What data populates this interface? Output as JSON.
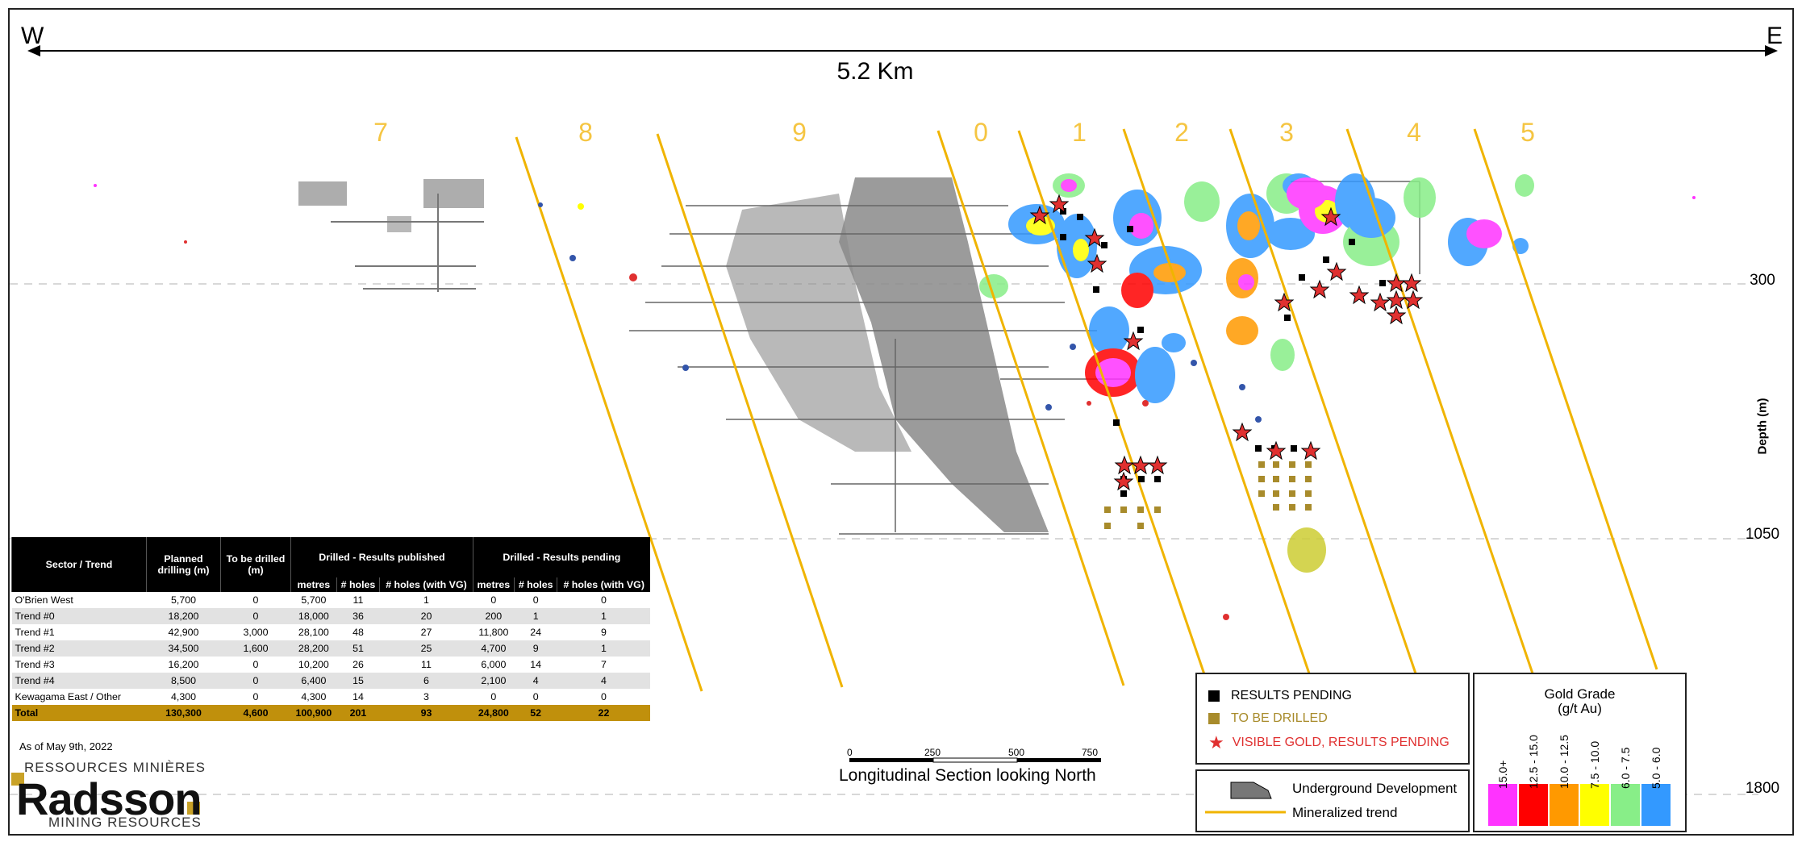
{
  "compass": {
    "west": "W",
    "east": "E"
  },
  "section_width": "5.2 Km",
  "trend_labels": [
    "7",
    "8",
    "9",
    "0",
    "1",
    "2",
    "3",
    "4",
    "5"
  ],
  "depth_labels": [
    "300",
    "1050",
    "1800"
  ],
  "depth_axis_label": "Depth (m)",
  "table": {
    "headers": {
      "sector": "Sector / Trend",
      "planned": "Planned drilling (m)",
      "to_be_drilled": "To be drilled (m)",
      "published_group": "Drilled - Results published",
      "pending_group": "Drilled - Results pending",
      "metres": "metres",
      "holes": "# holes",
      "holes_vg": "# holes (with VG)"
    },
    "rows": [
      {
        "sector": "O'Brien West",
        "planned": "5,700",
        "tbd": "0",
        "pub_m": "5,700",
        "pub_h": "11",
        "pub_vg": "1",
        "pen_m": "0",
        "pen_h": "0",
        "pen_vg": "0"
      },
      {
        "sector": "Trend #0",
        "planned": "18,200",
        "tbd": "0",
        "pub_m": "18,000",
        "pub_h": "36",
        "pub_vg": "20",
        "pen_m": "200",
        "pen_h": "1",
        "pen_vg": "1"
      },
      {
        "sector": "Trend #1",
        "planned": "42,900",
        "tbd": "3,000",
        "pub_m": "28,100",
        "pub_h": "48",
        "pub_vg": "27",
        "pen_m": "11,800",
        "pen_h": "24",
        "pen_vg": "9"
      },
      {
        "sector": "Trend #2",
        "planned": "34,500",
        "tbd": "1,600",
        "pub_m": "28,200",
        "pub_h": "51",
        "pub_vg": "25",
        "pen_m": "4,700",
        "pen_h": "9",
        "pen_vg": "1"
      },
      {
        "sector": "Trend #3",
        "planned": "16,200",
        "tbd": "0",
        "pub_m": "10,200",
        "pub_h": "26",
        "pub_vg": "11",
        "pen_m": "6,000",
        "pen_h": "14",
        "pen_vg": "7"
      },
      {
        "sector": "Trend #4",
        "planned": "8,500",
        "tbd": "0",
        "pub_m": "6,400",
        "pub_h": "15",
        "pub_vg": "6",
        "pen_m": "2,100",
        "pen_h": "4",
        "pen_vg": "4"
      },
      {
        "sector": "Kewagama East / Other",
        "planned": "4,300",
        "tbd": "0",
        "pub_m": "4,300",
        "pub_h": "14",
        "pub_vg": "3",
        "pen_m": "0",
        "pen_h": "0",
        "pen_vg": "0"
      }
    ],
    "total": {
      "sector": "Total",
      "planned": "130,300",
      "tbd": "4,600",
      "pub_m": "100,900",
      "pub_h": "201",
      "pub_vg": "93",
      "pen_m": "24,800",
      "pen_h": "52",
      "pen_vg": "22"
    }
  },
  "as_of": "As of May 9th, 2022",
  "logo": {
    "top": "RESSOURCES MINIÈRES",
    "name": "Radsson",
    "bottom": "MINING RESOURCES"
  },
  "scale_bar": {
    "ticks": [
      "0",
      "250",
      "500",
      "750"
    ],
    "caption": "Longitudinal Section looking North"
  },
  "legend_symbols": {
    "pending": "RESULTS PENDING",
    "to_be_drilled": "TO BE DRILLED",
    "visible_gold": "VISIBLE GOLD, RESULTS PENDING"
  },
  "legend_lines": {
    "underground": "Underground Development",
    "trend": "Mineralized trend"
  },
  "grade_legend": {
    "title": "Gold Grade",
    "unit": "(g/t Au)",
    "bins": [
      {
        "label": "15.0+",
        "color": "#ff33ff"
      },
      {
        "label": "12.5 - 15.0",
        "color": "#ff0000"
      },
      {
        "label": "10.0 - 12.5",
        "color": "#ff9900"
      },
      {
        "label": "7.5 - 10.0",
        "color": "#ffff00"
      },
      {
        "label": "6.0 - 7.5",
        "color": "#88ee88"
      },
      {
        "label": "5.0 - 6.0",
        "color": "#3399ff"
      }
    ]
  },
  "colors": {
    "trend_line": "#f0b400",
    "pending": "#000000",
    "to_be_drilled": "#a88b2b",
    "visible_gold": "#e03030",
    "table_total": "#c0900c"
  }
}
